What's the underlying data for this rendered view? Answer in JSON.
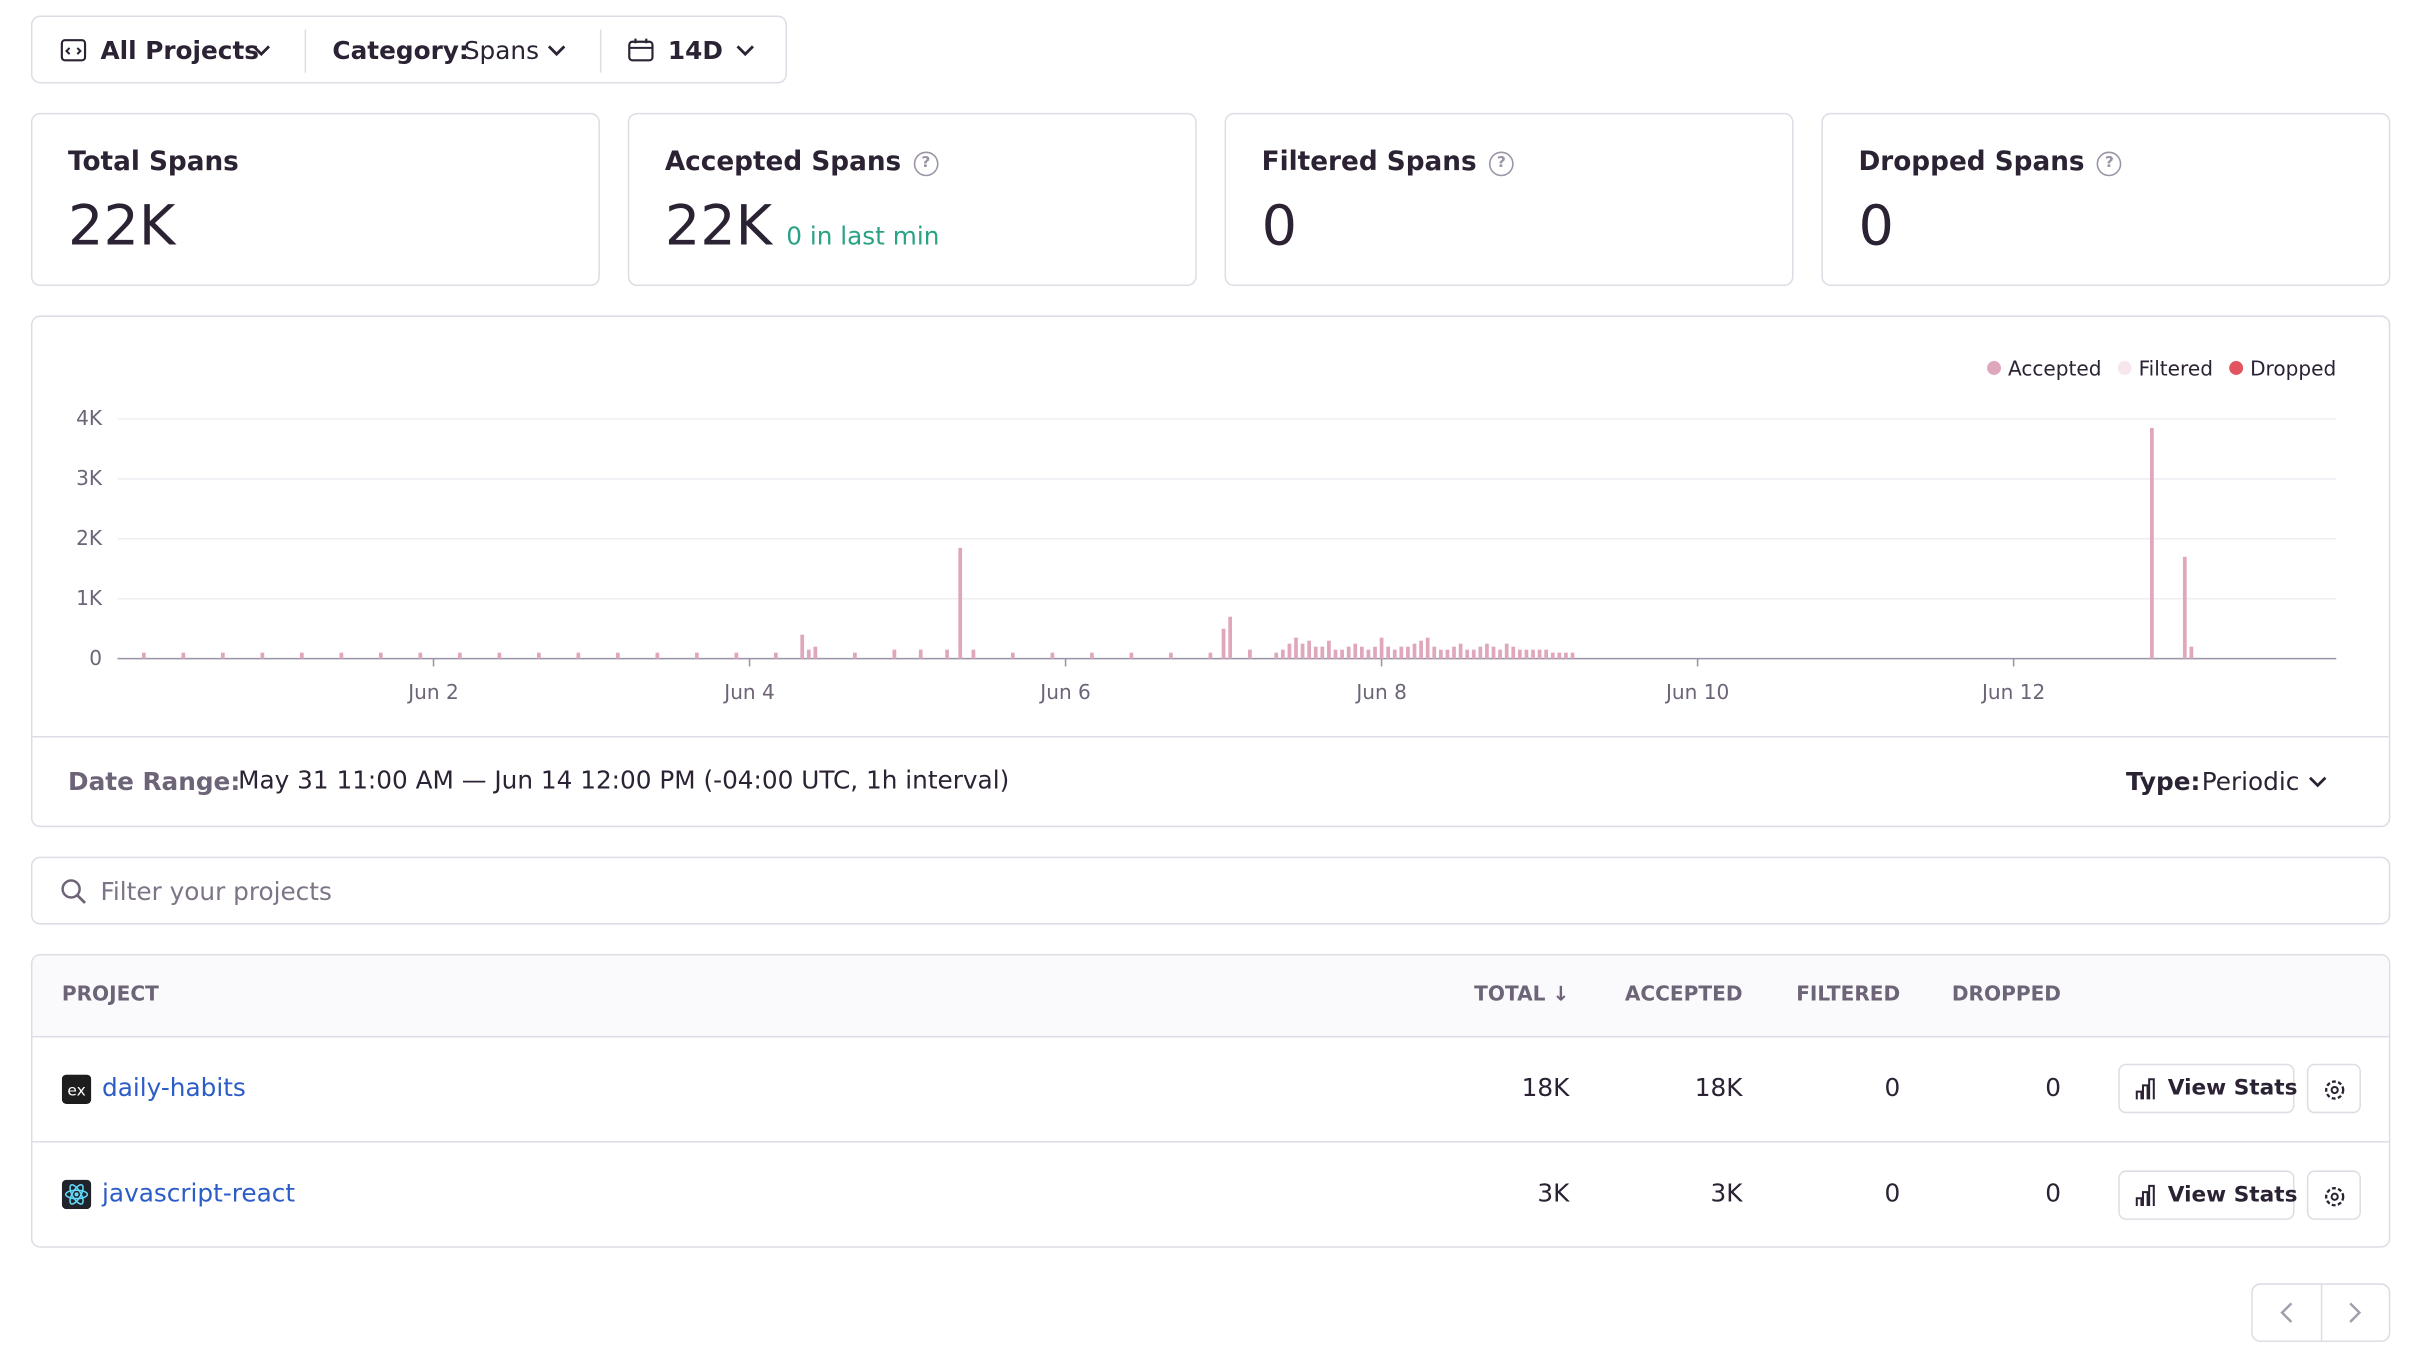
{
  "filters": {
    "projects": "All Projects",
    "category_label": "Category:",
    "category_value": "Spans",
    "period": "14D"
  },
  "cards": [
    {
      "title": "Total Spans",
      "value": "22K"
    },
    {
      "title": "Accepted Spans",
      "value": "22K",
      "note": "0 in last min"
    },
    {
      "title": "Filtered Spans",
      "value": "0"
    },
    {
      "title": "Dropped Spans",
      "value": "0"
    }
  ],
  "chart_data": {
    "type": "bar",
    "x": [
      4,
      10,
      16,
      22,
      28,
      34,
      40,
      46,
      52,
      58,
      64,
      70,
      76,
      82,
      88,
      94,
      100,
      104,
      105,
      106,
      112,
      118,
      122,
      126,
      128,
      130,
      136,
      142,
      148,
      154,
      160,
      166,
      168,
      169,
      172,
      176,
      177,
      178,
      179,
      180,
      181,
      182,
      183,
      184,
      185,
      186,
      187,
      188,
      189,
      190,
      191,
      192,
      193,
      194,
      195,
      196,
      197,
      198,
      199,
      200,
      201,
      202,
      203,
      204,
      205,
      206,
      207,
      208,
      209,
      210,
      211,
      212,
      213,
      214,
      215,
      216,
      217,
      218,
      219,
      220,
      221,
      309,
      314,
      315
    ],
    "series": [
      {
        "name": "Accepted",
        "color": "#dfa6bc",
        "values": [
          100,
          100,
          100,
          100,
          100,
          100,
          100,
          100,
          100,
          100,
          100,
          100,
          100,
          100,
          100,
          100,
          100,
          400,
          150,
          200,
          100,
          150,
          150,
          150,
          1850,
          150,
          100,
          100,
          100,
          100,
          100,
          100,
          500,
          700,
          150,
          100,
          150,
          250,
          350,
          250,
          300,
          200,
          200,
          300,
          150,
          150,
          200,
          250,
          200,
          150,
          200,
          350,
          200,
          150,
          200,
          200,
          250,
          300,
          350,
          200,
          150,
          150,
          200,
          250,
          150,
          150,
          200,
          250,
          200,
          150,
          250,
          200,
          150,
          150,
          150,
          150,
          150,
          100,
          100,
          100,
          100,
          3850,
          1700,
          200
        ]
      }
    ],
    "legend_items": [
      {
        "name": "Accepted",
        "color": "#dfa6bc"
      },
      {
        "name": "Filtered",
        "color": "#f7e6ec"
      },
      {
        "name": "Dropped",
        "color": "#e2545f"
      }
    ],
    "xlim": [
      0,
      337
    ],
    "ylim": [
      0,
      4000
    ],
    "xticks": [
      {
        "value": 48,
        "label": "Jun 2"
      },
      {
        "value": 96,
        "label": "Jun 4"
      },
      {
        "value": 144,
        "label": "Jun 6"
      },
      {
        "value": 192,
        "label": "Jun 8"
      },
      {
        "value": 240,
        "label": "Jun 10"
      },
      {
        "value": 288,
        "label": "Jun 12"
      }
    ],
    "yticks": [
      0,
      {
        "value": 1000,
        "label": "1K"
      },
      {
        "value": 2000,
        "label": "2K"
      },
      {
        "value": 3000,
        "label": "3K"
      },
      {
        "value": 4000,
        "label": "4K"
      }
    ],
    "grid": true
  },
  "date_range": {
    "label": "Date Range:",
    "value": "May 31 11:00 AM — Jun 14 12:00 PM (-04:00 UTC, 1h interval)"
  },
  "type_select": {
    "label": "Type:",
    "value": "Periodic"
  },
  "search": {
    "placeholder": "Filter your projects"
  },
  "table": {
    "headers": [
      "PROJECT",
      "TOTAL",
      "ACCEPTED",
      "FILTERED",
      "DROPPED"
    ],
    "rows": [
      [
        "daily-habits",
        "18K",
        "18K",
        "0",
        "0"
      ],
      [
        "javascript-react",
        "3K",
        "3K",
        "0",
        "0"
      ]
    ],
    "action": "View Stats"
  }
}
